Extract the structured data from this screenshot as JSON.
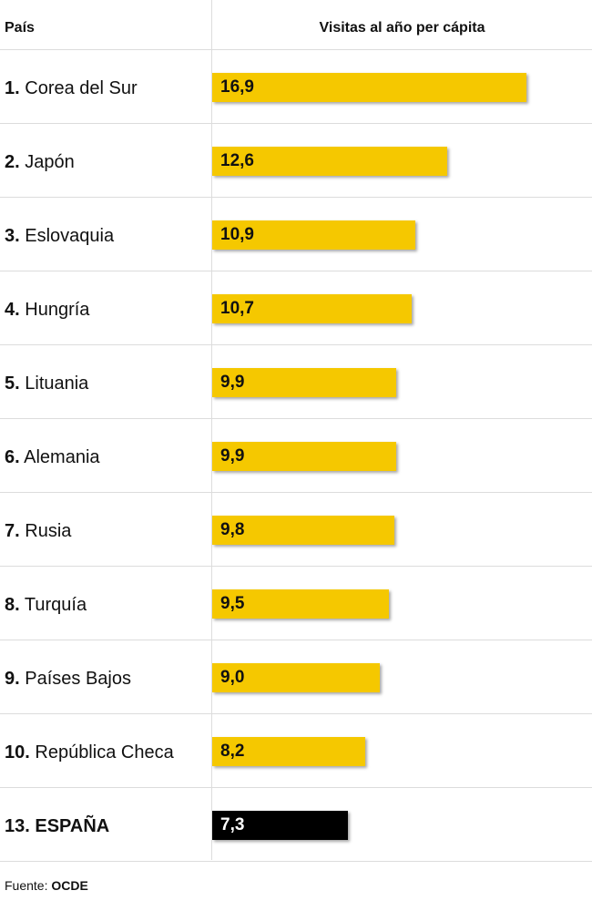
{
  "chart_data": {
    "type": "bar",
    "orientation": "horizontal",
    "column_headers": {
      "country": "País",
      "value": "Visitas al año per cápita"
    },
    "rows": [
      {
        "rank": "1.",
        "country": "Corea del Sur",
        "value": 16.9,
        "value_label": "16,9",
        "highlight": false
      },
      {
        "rank": "2.",
        "country": "Japón",
        "value": 12.6,
        "value_label": "12,6",
        "highlight": false
      },
      {
        "rank": "3.",
        "country": "Eslovaquia",
        "value": 10.9,
        "value_label": "10,9",
        "highlight": false
      },
      {
        "rank": "4.",
        "country": "Hungría",
        "value": 10.7,
        "value_label": "10,7",
        "highlight": false
      },
      {
        "rank": "5.",
        "country": "Lituania",
        "value": 9.9,
        "value_label": "9,9",
        "highlight": false
      },
      {
        "rank": "6.",
        "country": "Alemania",
        "value": 9.9,
        "value_label": "9,9",
        "highlight": false
      },
      {
        "rank": "7.",
        "country": "Rusia",
        "value": 9.8,
        "value_label": "9,8",
        "highlight": false
      },
      {
        "rank": "8.",
        "country": "Turquía",
        "value": 9.5,
        "value_label": "9,5",
        "highlight": false
      },
      {
        "rank": "9.",
        "country": "Países Bajos",
        "value": 9.0,
        "value_label": "9,0",
        "highlight": false
      },
      {
        "rank": "10.",
        "country": "República Checa",
        "value": 8.2,
        "value_label": "8,2",
        "highlight": false
      },
      {
        "rank": "13.",
        "country": "ESPAÑA",
        "value": 7.3,
        "value_label": "7,3",
        "highlight": true
      }
    ],
    "colors": {
      "bar": "#f5c800",
      "highlight_bar": "#000000"
    },
    "xlim": [
      0,
      20.4
    ]
  },
  "source": {
    "prefix": "Fuente:",
    "name": "OCDE"
  }
}
